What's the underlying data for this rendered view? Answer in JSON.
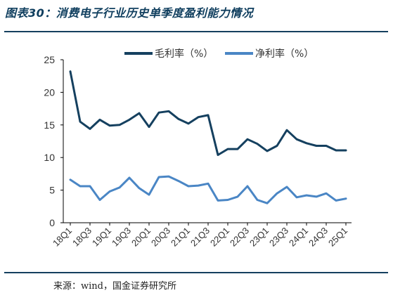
{
  "figure": {
    "title": "图表30：消费电子行业历史单季度盈利能力情况",
    "source": "来源：wind，国金证券研究所"
  },
  "colors": {
    "rule": "#15405f",
    "series_gross": "#15405f",
    "series_net": "#4a86c5"
  },
  "chart_data": {
    "type": "line",
    "title": "",
    "xlabel": "",
    "ylabel": "",
    "ylim": [
      0,
      25
    ],
    "yticks": [
      0,
      5,
      10,
      15,
      20,
      25
    ],
    "grid": false,
    "legend_position": "top",
    "x": [
      "18Q1",
      "18Q2",
      "18Q3",
      "18Q4",
      "19Q1",
      "19Q2",
      "19Q3",
      "19Q4",
      "20Q1",
      "20Q2",
      "20Q3",
      "20Q4",
      "21Q1",
      "21Q2",
      "21Q3",
      "21Q4",
      "22Q1",
      "22Q2",
      "22Q3",
      "22Q4",
      "23Q1",
      "23Q2",
      "23Q3",
      "23Q4",
      "24Q1",
      "24Q2",
      "24Q3",
      "24Q4",
      "25Q1"
    ],
    "x_tick_labels": [
      "18Q1",
      "18Q3",
      "19Q1",
      "19Q3",
      "20Q1",
      "20Q3",
      "21Q1",
      "21Q3",
      "22Q1",
      "22Q3",
      "23Q1",
      "23Q3",
      "24Q1",
      "24Q3",
      "25Q1"
    ],
    "series": [
      {
        "name": "毛利率（%）",
        "values": [
          23.2,
          15.5,
          14.4,
          15.8,
          14.9,
          15.0,
          15.8,
          16.8,
          14.7,
          16.9,
          17.1,
          15.9,
          15.2,
          16.2,
          16.5,
          10.4,
          11.3,
          11.3,
          12.8,
          12.1,
          11.0,
          11.8,
          14.2,
          12.8,
          12.2,
          11.8,
          11.8,
          11.1,
          11.1
        ]
      },
      {
        "name": "净利率（%）",
        "values": [
          6.6,
          5.6,
          5.6,
          3.5,
          4.8,
          5.4,
          6.9,
          5.3,
          4.3,
          7.0,
          7.1,
          6.4,
          5.6,
          5.7,
          6.0,
          3.4,
          3.5,
          4.0,
          5.6,
          3.5,
          3.0,
          4.5,
          5.5,
          3.9,
          4.2,
          4.0,
          4.5,
          3.4,
          3.7
        ]
      }
    ]
  }
}
